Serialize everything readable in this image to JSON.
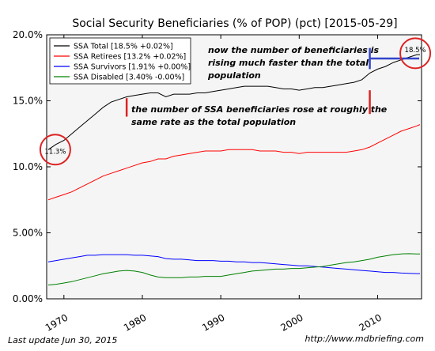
{
  "footer": {
    "last_update": "Last update Jun 30, 2015",
    "source_url": "http://www.mdbriefing.com"
  },
  "chart_data": {
    "type": "line",
    "title": "Social Security Beneficiaries (% of POP) (pct) [2015-05-29]",
    "xlabel": "",
    "ylabel": "",
    "xlim": [
      1967.8,
      2015.6
    ],
    "ylim": [
      0,
      20
    ],
    "x_ticks": [
      1970,
      1980,
      1990,
      2000,
      2010
    ],
    "x_tick_labels": [
      "1970",
      "1980",
      "1990",
      "2000",
      "2010"
    ],
    "y_ticks": [
      0,
      5,
      10,
      15,
      20
    ],
    "y_tick_labels": [
      "0.00%",
      "5.00%",
      "10.0%",
      "15.0%",
      "20.0%"
    ],
    "grid": false,
    "legend_position": "top-left",
    "series": [
      {
        "name": "SSA Total [18.5% +0.02%]",
        "color": "#000000",
        "x": [
          1968,
          1969,
          1970,
          1971,
          1972,
          1973,
          1974,
          1975,
          1976,
          1977,
          1978,
          1979,
          1980,
          1981,
          1982,
          1983,
          1984,
          1985,
          1986,
          1987,
          1988,
          1989,
          1990,
          1991,
          1992,
          1993,
          1994,
          1995,
          1996,
          1997,
          1998,
          1999,
          2000,
          2001,
          2002,
          2003,
          2004,
          2005,
          2006,
          2007,
          2008,
          2009,
          2010,
          2011,
          2012,
          2013,
          2014,
          2015,
          2015.4
        ],
        "y": [
          11.3,
          11.7,
          12.0,
          12.5,
          13.0,
          13.5,
          14.0,
          14.5,
          14.9,
          15.1,
          15.3,
          15.4,
          15.5,
          15.6,
          15.6,
          15.3,
          15.5,
          15.5,
          15.5,
          15.6,
          15.6,
          15.7,
          15.8,
          15.9,
          16.0,
          16.1,
          16.1,
          16.1,
          16.1,
          16.0,
          15.9,
          15.9,
          15.8,
          15.9,
          16.0,
          16.0,
          16.1,
          16.2,
          16.3,
          16.4,
          16.6,
          17.1,
          17.4,
          17.6,
          17.9,
          18.1,
          18.3,
          18.5,
          18.5
        ]
      },
      {
        "name": "SSA Retirees [13.2% +0.02%]",
        "color": "#ff0000",
        "x": [
          1968,
          1969,
          1970,
          1971,
          1972,
          1973,
          1974,
          1975,
          1976,
          1977,
          1978,
          1979,
          1980,
          1981,
          1982,
          1983,
          1984,
          1985,
          1986,
          1987,
          1988,
          1989,
          1990,
          1991,
          1992,
          1993,
          1994,
          1995,
          1996,
          1997,
          1998,
          1999,
          2000,
          2001,
          2002,
          2003,
          2004,
          2005,
          2006,
          2007,
          2008,
          2009,
          2010,
          2011,
          2012,
          2013,
          2014,
          2015,
          2015.4
        ],
        "y": [
          7.5,
          7.7,
          7.9,
          8.1,
          8.4,
          8.7,
          9.0,
          9.3,
          9.5,
          9.7,
          9.9,
          10.1,
          10.3,
          10.4,
          10.6,
          10.6,
          10.8,
          10.9,
          11.0,
          11.1,
          11.2,
          11.2,
          11.2,
          11.3,
          11.3,
          11.3,
          11.3,
          11.2,
          11.2,
          11.2,
          11.1,
          11.1,
          11.0,
          11.1,
          11.1,
          11.1,
          11.1,
          11.1,
          11.1,
          11.2,
          11.3,
          11.5,
          11.8,
          12.1,
          12.4,
          12.7,
          12.9,
          13.1,
          13.2
        ]
      },
      {
        "name": "SSA Survivors [1.91% +0.00%]",
        "color": "#0000ff",
        "x": [
          1968,
          1969,
          1970,
          1971,
          1972,
          1973,
          1974,
          1975,
          1976,
          1977,
          1978,
          1979,
          1980,
          1981,
          1982,
          1983,
          1984,
          1985,
          1986,
          1987,
          1988,
          1989,
          1990,
          1991,
          1992,
          1993,
          1994,
          1995,
          1996,
          1997,
          1998,
          1999,
          2000,
          2001,
          2002,
          2003,
          2004,
          2005,
          2006,
          2007,
          2008,
          2009,
          2010,
          2011,
          2012,
          2013,
          2014,
          2015,
          2015.4
        ],
        "y": [
          2.8,
          2.9,
          3.0,
          3.1,
          3.2,
          3.3,
          3.3,
          3.35,
          3.35,
          3.35,
          3.35,
          3.3,
          3.3,
          3.25,
          3.2,
          3.05,
          3.0,
          3.0,
          2.95,
          2.9,
          2.9,
          2.9,
          2.85,
          2.85,
          2.8,
          2.8,
          2.75,
          2.75,
          2.7,
          2.65,
          2.6,
          2.55,
          2.5,
          2.5,
          2.45,
          2.4,
          2.35,
          2.3,
          2.25,
          2.2,
          2.15,
          2.1,
          2.05,
          2.0,
          2.0,
          1.95,
          1.93,
          1.91,
          1.91
        ]
      },
      {
        "name": "SSA Disabled [3.40% -0.00%]",
        "color": "#008000",
        "x": [
          1968,
          1969,
          1970,
          1971,
          1972,
          1973,
          1974,
          1975,
          1976,
          1977,
          1978,
          1979,
          1980,
          1981,
          1982,
          1983,
          1984,
          1985,
          1986,
          1987,
          1988,
          1989,
          1990,
          1991,
          1992,
          1993,
          1994,
          1995,
          1996,
          1997,
          1998,
          1999,
          2000,
          2001,
          2002,
          2003,
          2004,
          2005,
          2006,
          2007,
          2008,
          2009,
          2010,
          2011,
          2012,
          2013,
          2014,
          2015,
          2015.4
        ],
        "y": [
          1.05,
          1.1,
          1.2,
          1.3,
          1.45,
          1.6,
          1.75,
          1.9,
          2.0,
          2.1,
          2.15,
          2.1,
          2.0,
          1.8,
          1.65,
          1.6,
          1.6,
          1.6,
          1.65,
          1.65,
          1.7,
          1.7,
          1.7,
          1.8,
          1.9,
          2.0,
          2.1,
          2.15,
          2.2,
          2.25,
          2.25,
          2.3,
          2.3,
          2.35,
          2.4,
          2.45,
          2.55,
          2.65,
          2.75,
          2.8,
          2.9,
          3.0,
          3.15,
          3.25,
          3.35,
          3.4,
          3.42,
          3.4,
          3.4
        ]
      }
    ],
    "annotations": {
      "start_value": "11.3%",
      "end_value": "18.5%",
      "note_same_rate": [
        "the number of SSA beneficiaries rose at roughly the",
        "same rate as the total population"
      ],
      "note_faster": [
        "now the number of beneficiaries is",
        "rising much faster than the total",
        "population"
      ],
      "marker_color": "#dd2222",
      "bracket_color": "#3344cc"
    }
  }
}
